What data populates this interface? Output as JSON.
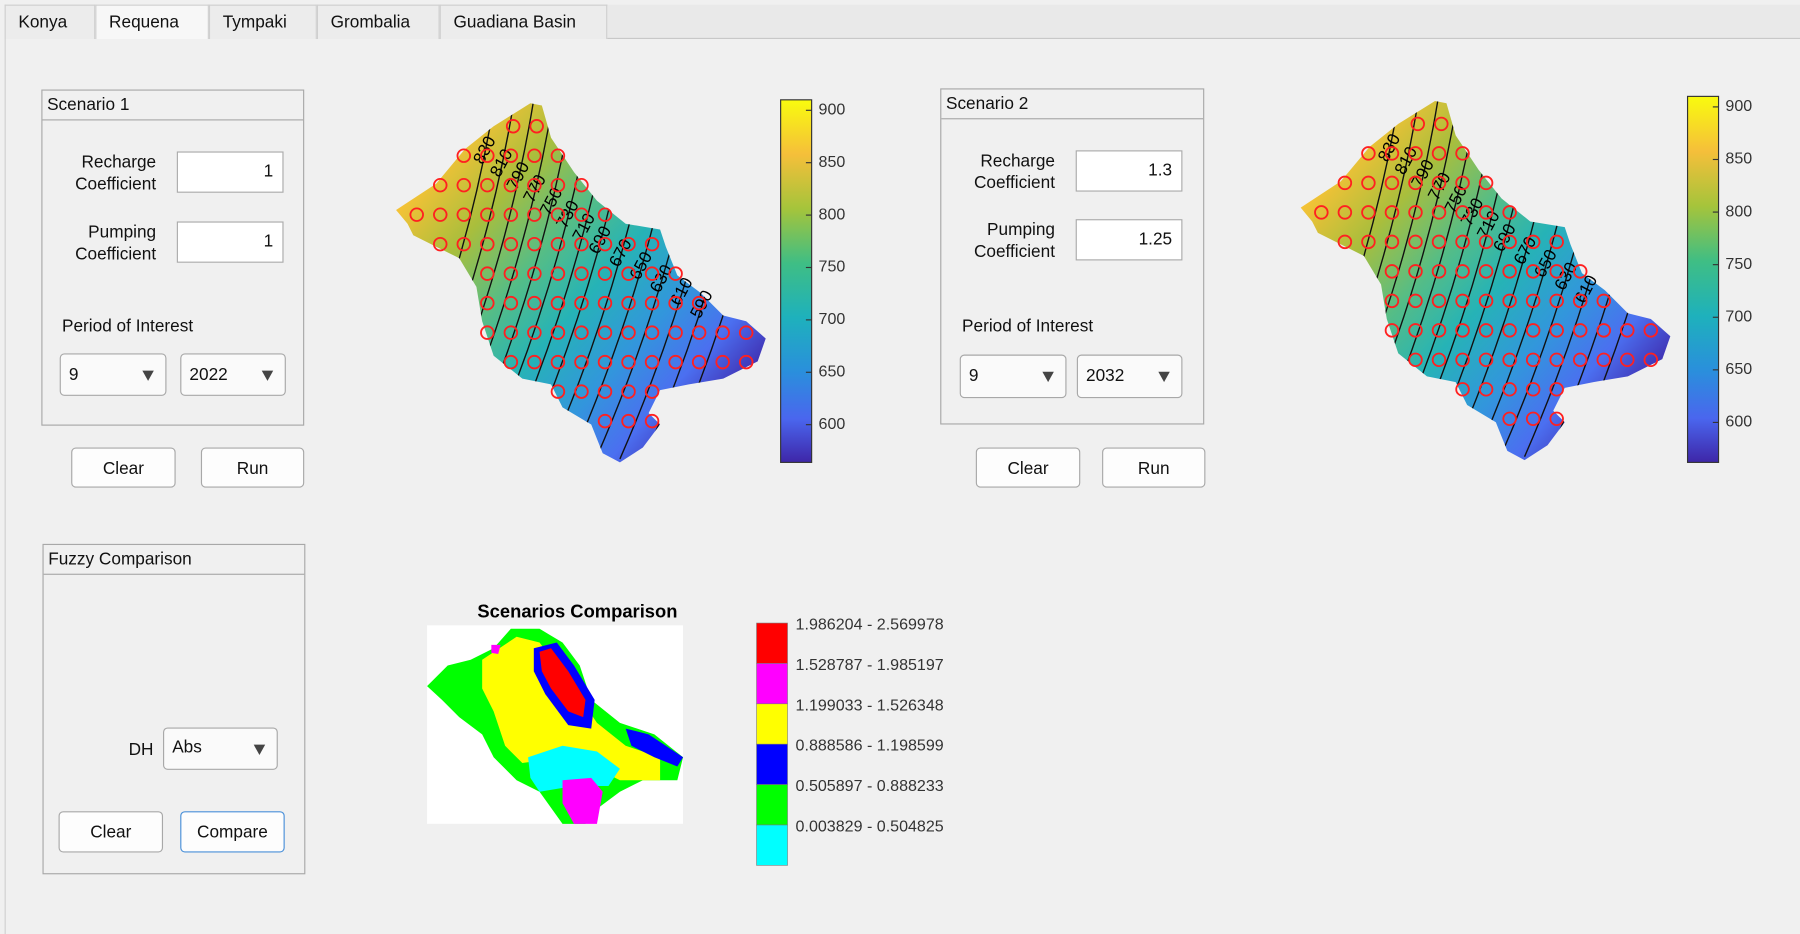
{
  "tabs": [
    "Konya",
    "Requena",
    "Tympaki",
    "Grombalia",
    "Guadiana Basin"
  ],
  "scenario_1": {
    "title": "Scenario 1",
    "recharge_label": "Recharge Coefficient",
    "recharge": "1",
    "pumping_label": "Pumping Coefficient",
    "pumping": "1",
    "period_label": "Period of Interest",
    "month": "9",
    "year": "2022",
    "clear": "Clear",
    "run": "Run",
    "contour_labels": [
      "830",
      "810",
      "790",
      "770",
      "750",
      "730",
      "710",
      "690",
      "670",
      "650",
      "630",
      "610",
      "590"
    ],
    "colorbar": {
      "range": [
        564,
        910
      ],
      "ticks": [
        600,
        650,
        700,
        750,
        800,
        850,
        900
      ]
    }
  },
  "scenario_2": {
    "title": "Scenario 2",
    "recharge_label": "Recharge Coefficient",
    "recharge": "1.3",
    "pumping_label": "Pumping Coefficient",
    "pumping": "1.25",
    "period_label": "Period of Interest",
    "month": "9",
    "year": "2032",
    "clear": "Clear",
    "run": "Run",
    "contour_labels": [
      "830",
      "810",
      "790",
      "770",
      "750",
      "730",
      "710",
      "690",
      "670",
      "650",
      "630",
      "610"
    ],
    "colorbar": {
      "range": [
        562,
        910
      ],
      "ticks": [
        600,
        650,
        700,
        750,
        800,
        850,
        900
      ]
    }
  },
  "fuzzy": {
    "title": "Fuzzy Comparison",
    "dh_label": "DH",
    "dh": "Abs",
    "clear": "Clear",
    "compare": "Compare"
  },
  "comparison": {
    "title": "Scenarios Comparison",
    "legend": [
      {
        "label": "1.986204 - 2.569978",
        "color": "#ff0000"
      },
      {
        "label": "1.528787 - 1.985197",
        "color": "#ff00ff"
      },
      {
        "label": "1.199033 - 1.526348",
        "color": "#ffff00"
      },
      {
        "label": "0.888586 - 1.198599",
        "color": "#0000ff"
      },
      {
        "label": "0.505897 - 0.888233",
        "color": "#00ff00"
      },
      {
        "label": "0.003829 - 0.504825",
        "color": "#00ffff"
      }
    ]
  }
}
